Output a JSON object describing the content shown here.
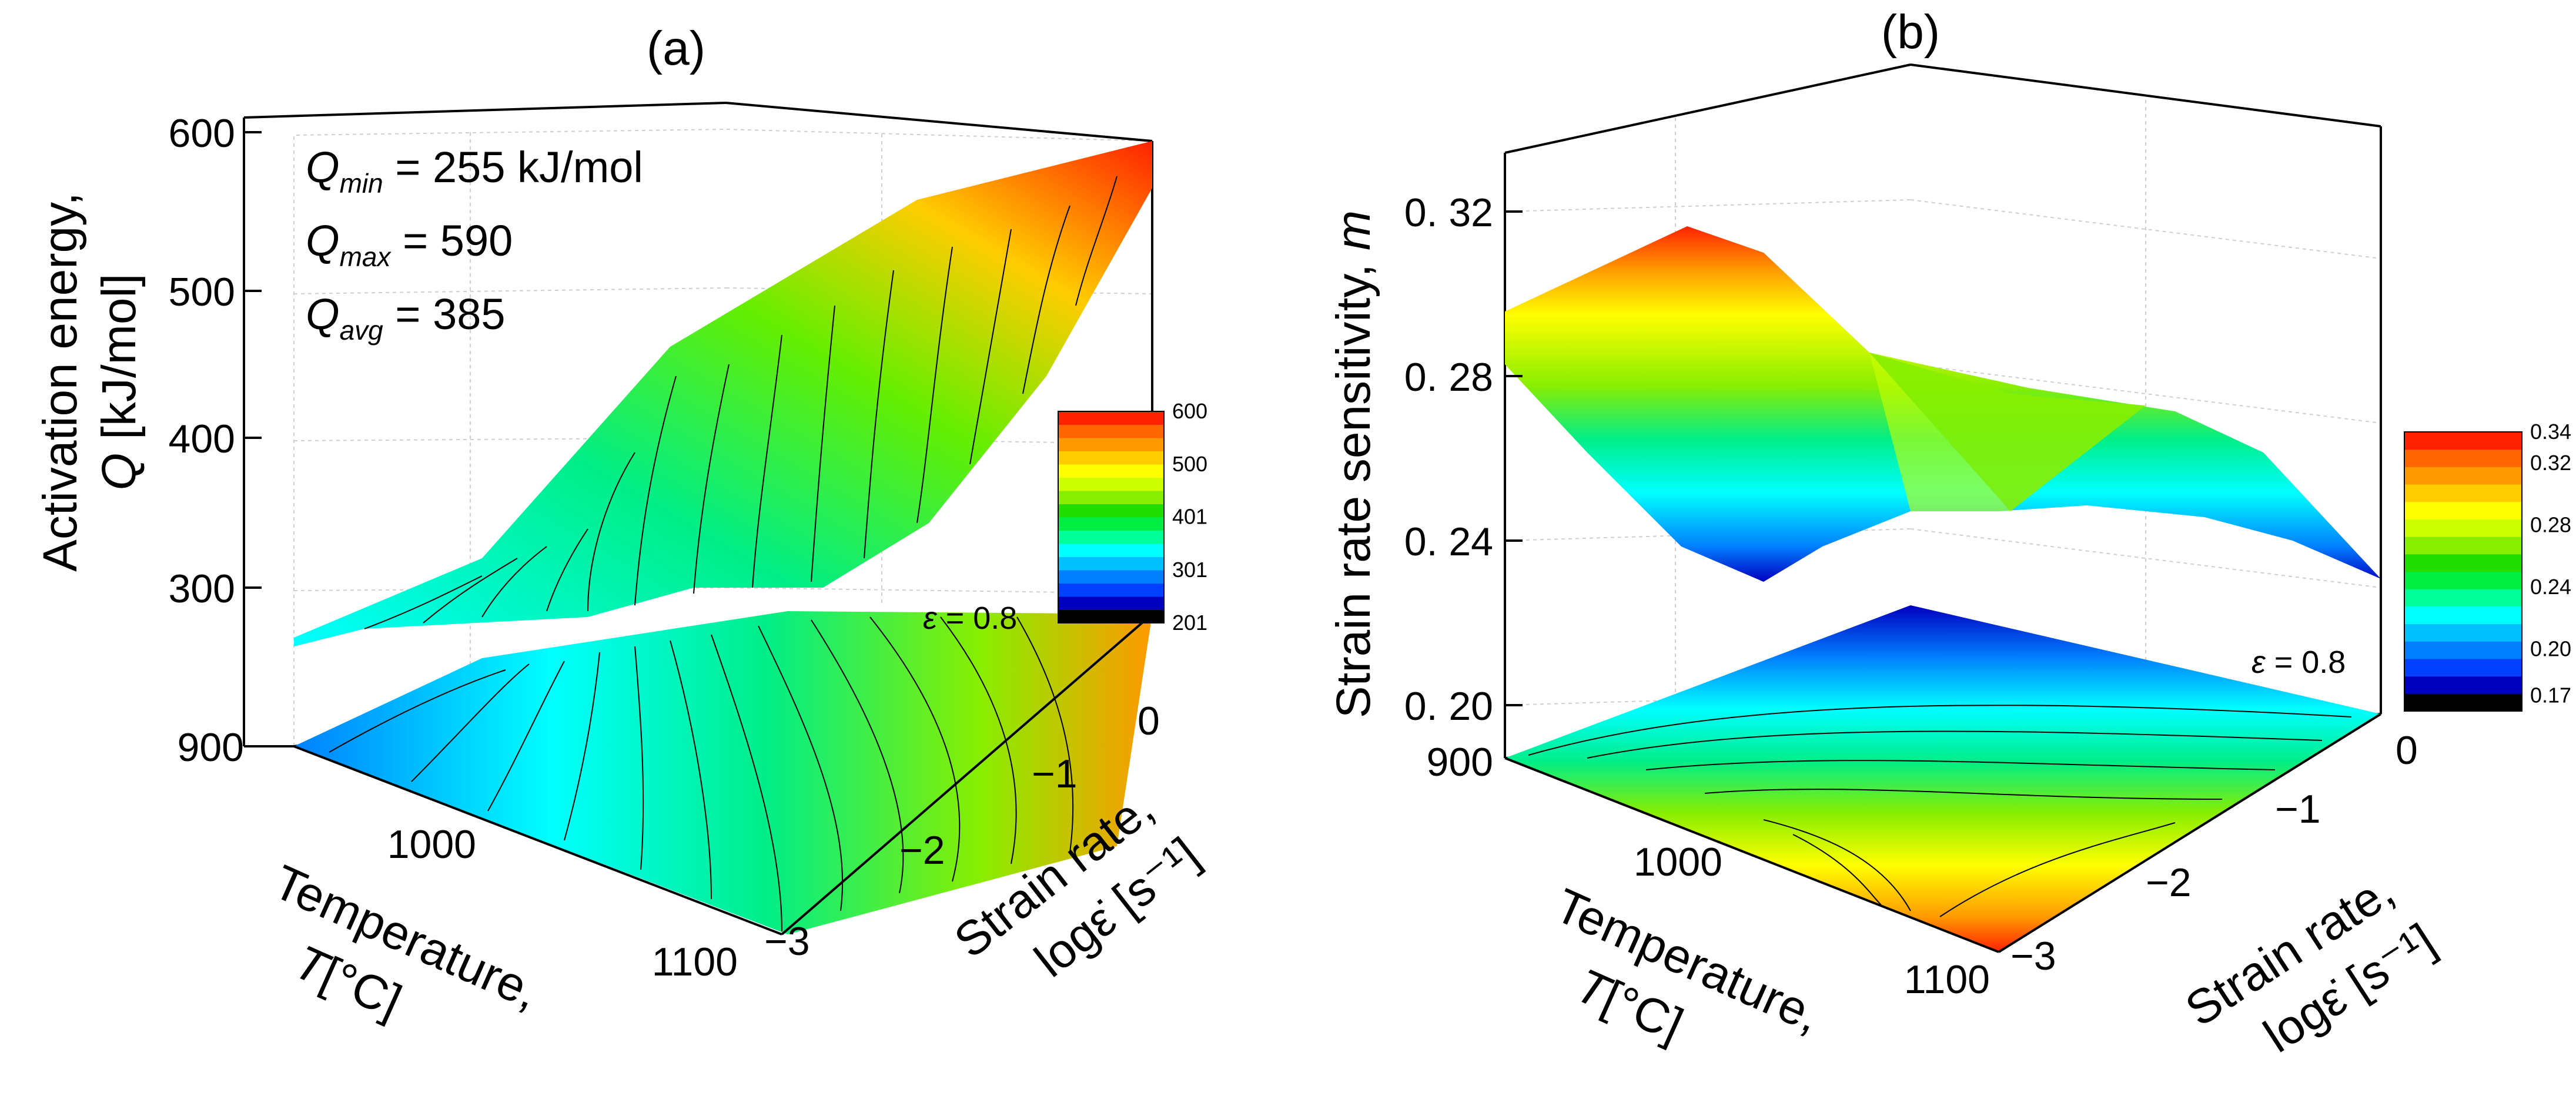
{
  "chart_data": [
    {
      "type": "surface3d",
      "panel_label": "(a)",
      "z_label_line1": "Activation energy,",
      "z_label_symbol": "Q",
      "z_label_unit": "[kJ/mol]",
      "x_label_line1": "Temperature,",
      "x_label_symbol": "T",
      "x_label_unit": "[°C]",
      "y_label_line1": "Strain rate,",
      "y_label_line2": "logε̇ [s⁻¹]",
      "z_ticks": [
        "600",
        "500",
        "400",
        "300"
      ],
      "x_ticks": [
        "900",
        "1000",
        "1100"
      ],
      "y_ticks": [
        "0",
        "−1",
        "−2",
        "−3"
      ],
      "zlim": [
        200,
        600
      ],
      "xlim": [
        900,
        1100
      ],
      "ylim": [
        -3,
        0
      ],
      "annotations": {
        "qmin_sym": "Q",
        "qmin_sub": "min",
        "qmin_val": " = 255 kJ/mol",
        "qmax_sym": "Q",
        "qmax_sub": "max",
        "qmax_val": " = 590",
        "qavg_sym": "Q",
        "qavg_sub": "avg",
        "qavg_val": " = 385",
        "strain_sym": "ε",
        "strain_val": " = 0.8"
      },
      "stats": {
        "Qmin": 255,
        "Qmax": 590,
        "Qavg": 385,
        "strain": 0.8
      },
      "colorbar_labels": [
        "600",
        "500",
        "401",
        "301",
        "201"
      ],
      "colorbar_values": [
        600,
        500,
        401,
        301,
        201
      ],
      "colorbar_range": [
        201,
        600
      ]
    },
    {
      "type": "surface3d",
      "panel_label": "(b)",
      "z_label": "Strain rate sensitivity, ",
      "z_label_symbol": "m",
      "x_label_line1": "Temperature,",
      "x_label_symbol": "T",
      "x_label_unit": "[°C]",
      "y_label_line1": "Strain rate,",
      "y_label_line2": "logε̇ [s⁻¹]",
      "z_ticks": [
        "0. 32",
        "0. 28",
        "0. 24",
        "0. 20"
      ],
      "x_ticks": [
        "900",
        "1000",
        "1100"
      ],
      "y_ticks": [
        "0",
        "−1",
        "−2",
        "−3"
      ],
      "zlim": [
        0.18,
        0.34
      ],
      "xlim": [
        900,
        1100
      ],
      "ylim": [
        -3,
        0
      ],
      "annotations": {
        "strain_sym": "ε",
        "strain_val": " = 0.8"
      },
      "stats": {
        "strain": 0.8
      },
      "colorbar_labels": [
        "0.34",
        "0.32",
        "0.28",
        "0.24",
        "0.20",
        "0.17"
      ],
      "colorbar_values": [
        0.34,
        0.32,
        0.28,
        0.24,
        0.2,
        0.17
      ],
      "colorbar_range": [
        0.16,
        0.34
      ]
    }
  ],
  "colors": {
    "jet": [
      "#000000",
      "#0000c0",
      "#0040ff",
      "#0080ff",
      "#00c0ff",
      "#00ffff",
      "#00ff99",
      "#00ee44",
      "#22dd00",
      "#88ee00",
      "#ccff00",
      "#ffff00",
      "#ffcc00",
      "#ff9900",
      "#ff6600",
      "#ff2200"
    ]
  }
}
